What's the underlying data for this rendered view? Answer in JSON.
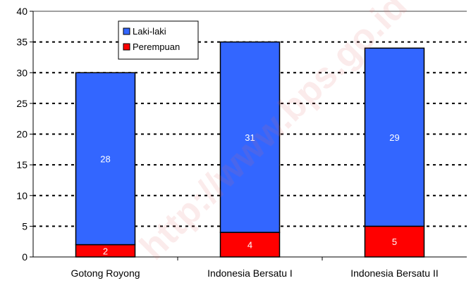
{
  "chart_data": {
    "type": "bar",
    "stacked": true,
    "categories": [
      "Gotong Royong",
      "Indonesia Bersatu I",
      "Indonesia Bersatu II"
    ],
    "series": [
      {
        "name": "Perempuan",
        "values": [
          2,
          4,
          5
        ],
        "color": "#ff0000"
      },
      {
        "name": "Laki-laki",
        "values": [
          28,
          31,
          29
        ],
        "color": "#3366ff"
      }
    ],
    "ylim": [
      0,
      40
    ],
    "yticks": [
      0,
      5,
      10,
      15,
      20,
      25,
      30,
      35,
      40
    ],
    "grid": true,
    "legend_position": "top-left",
    "legend_order": [
      "Laki-laki",
      "Perempuan"
    ]
  },
  "watermark": "http://www.bps.go.id"
}
